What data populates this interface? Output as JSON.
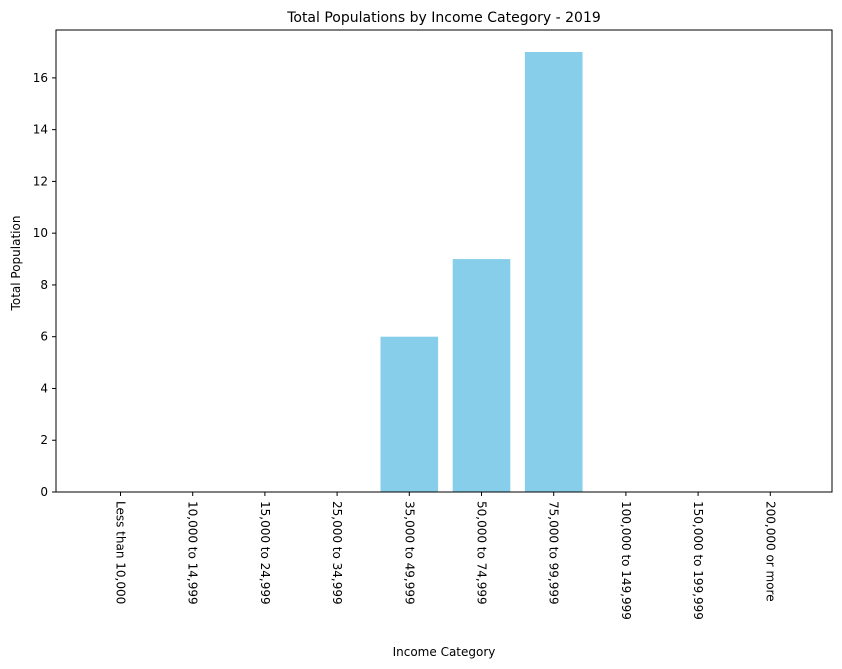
{
  "chart_data": {
    "type": "bar",
    "title": "Total Populations by Income Category - 2019",
    "xlabel": "Income Category",
    "ylabel": "Total Population",
    "categories": [
      "Less than 10,000",
      "10,000 to 14,999",
      "15,000 to 24,999",
      "25,000 to 34,999",
      "35,000 to 49,999",
      "50,000 to 74,999",
      "75,000 to 99,999",
      "100,000 to 149,999",
      "150,000 to 199,999",
      "200,000 or more"
    ],
    "values": [
      0,
      0,
      0,
      0,
      6,
      9,
      17,
      0,
      0,
      0
    ],
    "ylim": [
      0,
      17.85
    ],
    "yticks": [
      "0",
      "2",
      "4",
      "6",
      "8",
      "10",
      "12",
      "14",
      "16"
    ],
    "bar_color": "#87CEEB",
    "grid": false,
    "legend": "none"
  }
}
